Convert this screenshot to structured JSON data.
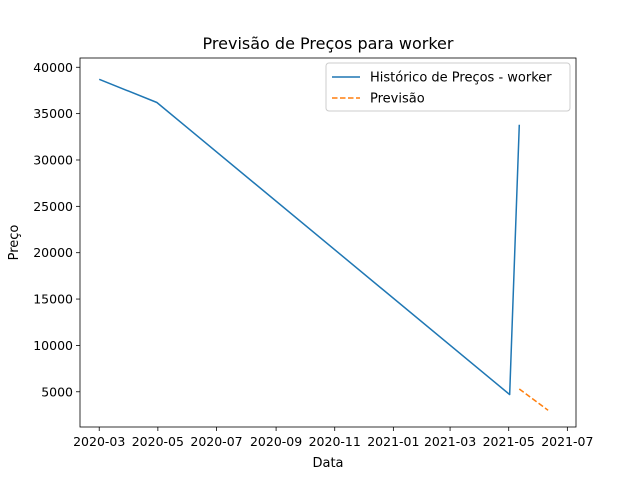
{
  "chart_data": {
    "type": "line",
    "title": "Previsão de Preços para worker",
    "xlabel": "Data",
    "ylabel": "Preço",
    "x_type": "date",
    "xlim": [
      "2020-02-10",
      "2021-07-10"
    ],
    "ylim": [
      1200,
      41000
    ],
    "xticks": [
      "2020-03",
      "2020-05",
      "2020-07",
      "2020-09",
      "2020-11",
      "2021-01",
      "2021-03",
      "2021-05",
      "2021-07"
    ],
    "yticks": [
      5000,
      10000,
      15000,
      20000,
      25000,
      30000,
      35000,
      40000
    ],
    "grid": false,
    "legend_position": "top-right",
    "series": [
      {
        "name": "Histórico de Preços - worker",
        "style": "solid",
        "color": "#1f77b4",
        "x": [
          "2020-03-01",
          "2020-04-30",
          "2021-05-02",
          "2021-05-12"
        ],
        "y": [
          38700,
          36200,
          4700,
          33800
        ]
      },
      {
        "name": "Previsão",
        "style": "dashed",
        "color": "#ff7f0e",
        "x": [
          "2021-05-12",
          "2021-06-11"
        ],
        "y": [
          5300,
          3000
        ]
      }
    ]
  }
}
